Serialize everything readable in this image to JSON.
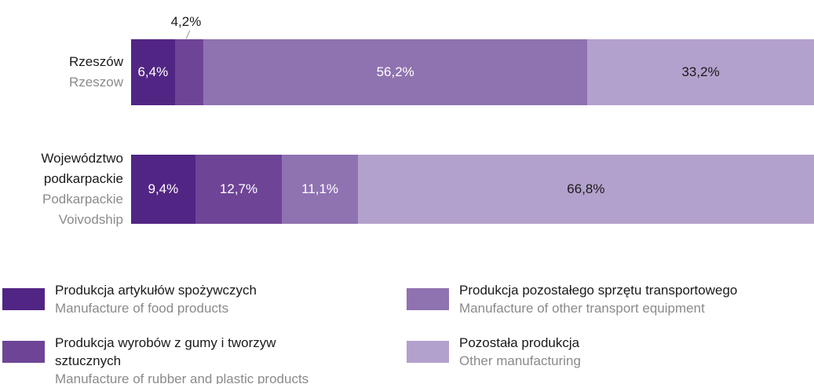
{
  "chart_data": {
    "type": "stacked-bar",
    "orientation": "horizontal",
    "categories": [
      "Rzeszów",
      "Województwo podkarpackie"
    ],
    "categories_en": [
      "Rzeszow",
      "Podkarpackie Voivodship"
    ],
    "xlim": [
      0,
      100
    ],
    "series": [
      {
        "name": "Produkcja artykułów spożywczych",
        "name_en": "Manufacture of food products",
        "color": "#512584",
        "label_color": "#ffffff",
        "values": [
          6.4,
          9.4
        ],
        "value_labels": [
          "6,4%",
          "9,4%"
        ]
      },
      {
        "name": "Produkcja wyrobów z gumy i tworzyw sztucznych",
        "name_en": "Manufacture of rubber and plastic products",
        "color": "#6e4497",
        "label_color": "#ffffff",
        "values": [
          4.2,
          12.7
        ],
        "value_labels": [
          "4,2%",
          "12,7%"
        ]
      },
      {
        "name": "Produkcja pozostałego sprzętu transportowego",
        "name_en": "Manufacture of other transport equipment",
        "color": "#8f72b0",
        "label_color": "#ffffff",
        "values": [
          56.2,
          11.1
        ],
        "value_labels": [
          "56,2%",
          "11,1%"
        ]
      },
      {
        "name": "Pozostała produkcja",
        "name_en": "Other manufacturing",
        "color": "#b3a1cd",
        "label_color": "#1a1a1a",
        "values": [
          33.2,
          66.8
        ],
        "value_labels": [
          "33,2%",
          "66,8%"
        ]
      }
    ]
  }
}
